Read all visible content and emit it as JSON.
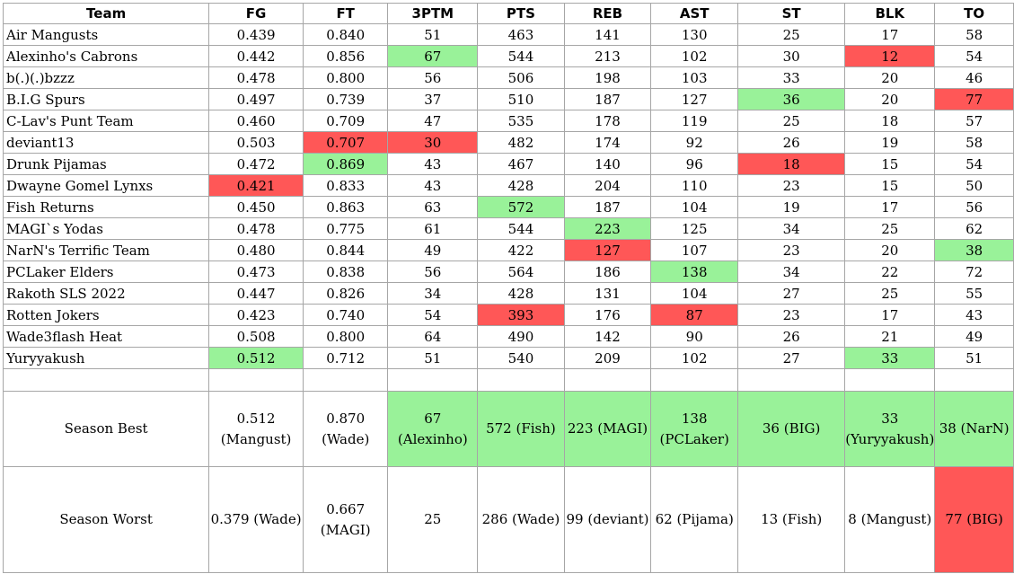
{
  "columns": [
    "Team",
    "FG",
    "FT",
    "3PTM",
    "PTS",
    "REB",
    "AST",
    "ST",
    "BLK",
    "TO"
  ],
  "rows": [
    {
      "cells": [
        "Air Mangusts",
        "0.439",
        "0.840",
        "51",
        "463",
        "141",
        "130",
        "25",
        "17",
        "58"
      ],
      "hl": [
        "",
        "",
        "",
        "",
        "",
        "",
        "",
        "",
        "",
        ""
      ]
    },
    {
      "cells": [
        "Alexinho's Cabrons",
        "0.442",
        "0.856",
        "67",
        "544",
        "213",
        "102",
        "30",
        "12",
        "54"
      ],
      "hl": [
        "",
        "",
        "",
        "good",
        "",
        "",
        "",
        "",
        "bad",
        ""
      ]
    },
    {
      "cells": [
        "b(.)(.)bzzz",
        "0.478",
        "0.800",
        "56",
        "506",
        "198",
        "103",
        "33",
        "20",
        "46"
      ],
      "hl": [
        "",
        "",
        "",
        "",
        "",
        "",
        "",
        "",
        "",
        ""
      ]
    },
    {
      "cells": [
        "B.I.G Spurs",
        "0.497",
        "0.739",
        "37",
        "510",
        "187",
        "127",
        "36",
        "20",
        "77"
      ],
      "hl": [
        "",
        "",
        "",
        "",
        "",
        "",
        "",
        "good",
        "",
        "bad"
      ]
    },
    {
      "cells": [
        "C-Lav's Punt Team",
        "0.460",
        "0.709",
        "47",
        "535",
        "178",
        "119",
        "25",
        "18",
        "57"
      ],
      "hl": [
        "",
        "",
        "",
        "",
        "",
        "",
        "",
        "",
        "",
        ""
      ]
    },
    {
      "cells": [
        "deviant13",
        "0.503",
        "0.707",
        "30",
        "482",
        "174",
        "92",
        "26",
        "19",
        "58"
      ],
      "hl": [
        "",
        "",
        "bad",
        "bad",
        "",
        "",
        "",
        "",
        "",
        ""
      ]
    },
    {
      "cells": [
        "Drunk Pijamas",
        "0.472",
        "0.869",
        "43",
        "467",
        "140",
        "96",
        "18",
        "15",
        "54"
      ],
      "hl": [
        "",
        "",
        "good",
        "",
        "",
        "",
        "",
        "bad",
        "",
        ""
      ]
    },
    {
      "cells": [
        "Dwayne Gomel Lynxs",
        "0.421",
        "0.833",
        "43",
        "428",
        "204",
        "110",
        "23",
        "15",
        "50"
      ],
      "hl": [
        "",
        "bad",
        "",
        "",
        "",
        "",
        "",
        "",
        "",
        ""
      ]
    },
    {
      "cells": [
        "Fish Returns",
        "0.450",
        "0.863",
        "63",
        "572",
        "187",
        "104",
        "19",
        "17",
        "56"
      ],
      "hl": [
        "",
        "",
        "",
        "",
        "good",
        "",
        "",
        "",
        "",
        ""
      ]
    },
    {
      "cells": [
        "MAGI`s Yodas",
        "0.478",
        "0.775",
        "61",
        "544",
        "223",
        "125",
        "34",
        "25",
        "62"
      ],
      "hl": [
        "",
        "",
        "",
        "",
        "",
        "good",
        "",
        "",
        "",
        ""
      ]
    },
    {
      "cells": [
        "NarN's Terrific Team",
        "0.480",
        "0.844",
        "49",
        "422",
        "127",
        "107",
        "23",
        "20",
        "38"
      ],
      "hl": [
        "",
        "",
        "",
        "",
        "",
        "bad",
        "",
        "",
        "",
        "good"
      ]
    },
    {
      "cells": [
        "PCLaker Elders",
        "0.473",
        "0.838",
        "56",
        "564",
        "186",
        "138",
        "34",
        "22",
        "72"
      ],
      "hl": [
        "",
        "",
        "",
        "",
        "",
        "",
        "good",
        "",
        "",
        ""
      ]
    },
    {
      "cells": [
        "Rakoth SLS 2022",
        "0.447",
        "0.826",
        "34",
        "428",
        "131",
        "104",
        "27",
        "25",
        "55"
      ],
      "hl": [
        "",
        "",
        "",
        "",
        "",
        "",
        "",
        "",
        "",
        ""
      ]
    },
    {
      "cells": [
        "Rotten Jokers",
        "0.423",
        "0.740",
        "54",
        "393",
        "176",
        "87",
        "23",
        "17",
        "43"
      ],
      "hl": [
        "",
        "",
        "",
        "",
        "bad",
        "",
        "bad",
        "",
        "",
        ""
      ]
    },
    {
      "cells": [
        "Wade3flash Heat",
        "0.508",
        "0.800",
        "64",
        "490",
        "142",
        "90",
        "26",
        "21",
        "49"
      ],
      "hl": [
        "",
        "",
        "",
        "",
        "",
        "",
        "",
        "",
        "",
        ""
      ]
    },
    {
      "cells": [
        "Yuryyakush",
        "0.512",
        "0.712",
        "51",
        "540",
        "209",
        "102",
        "27",
        "33",
        "51"
      ],
      "hl": [
        "",
        "good",
        "",
        "",
        "",
        "",
        "",
        "",
        "good",
        ""
      ]
    }
  ],
  "season_best": {
    "label": "Season Best",
    "cells": [
      "0.512 (Mangust)",
      "0.870 (Wade)",
      "67 (Alexinho)",
      "572 (Fish)",
      "223 (MAGI)",
      "138 (PCLaker)",
      "36 (BIG)",
      "33 (Yuryyakush)",
      "38 (NarN)"
    ],
    "hl": [
      "",
      "",
      "good",
      "good",
      "good",
      "good",
      "good",
      "good",
      "good"
    ]
  },
  "season_worst": {
    "label": "Season Worst",
    "cells": [
      "0.379 (Wade)",
      "0.667 (MAGI)",
      "25",
      "286 (Wade)",
      "99 (deviant)",
      "62 (Pijama)",
      "13 (Fish)",
      "8 (Mangust)",
      "77 (BIG)"
    ],
    "hl": [
      "",
      "",
      "",
      "",
      "",
      "",
      "",
      "",
      "bad"
    ]
  },
  "colors": {
    "good": "#99f299",
    "bad": "#ff5757",
    "border": "#a6a6a6"
  }
}
